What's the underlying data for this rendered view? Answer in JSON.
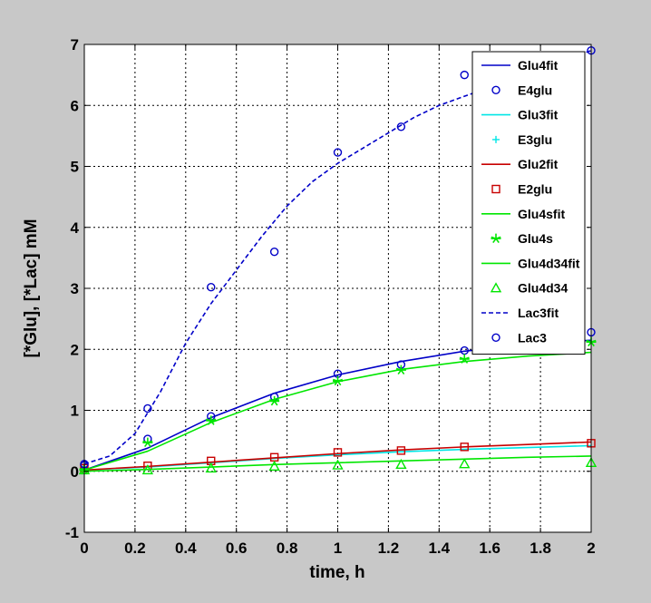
{
  "colors": {
    "figure_bg": "#c8c8c8",
    "axes_bg": "#ffffff",
    "blue": "#0000c8",
    "cyan": "#00e6e6",
    "red": "#c80000",
    "green": "#00e600"
  },
  "chart_data": {
    "type": "scatter",
    "xlabel": "time, h",
    "ylabel": "[*Glu], [*Lac] mM",
    "xlim": [
      0,
      2
    ],
    "ylim": [
      -1,
      7
    ],
    "xticks": [
      0,
      0.2,
      0.4,
      0.6,
      0.8,
      1,
      1.2,
      1.4,
      1.6,
      1.8,
      2
    ],
    "yticks": [
      -1,
      0,
      1,
      2,
      3,
      4,
      5,
      6,
      7
    ],
    "xtick_labels": [
      "0",
      "0.2",
      "0.4",
      "0.6",
      "0.8",
      "1",
      "1.2",
      "1.4",
      "1.6",
      "1.8",
      "2"
    ],
    "ytick_labels": [
      "-1",
      "0",
      "1",
      "2",
      "3",
      "4",
      "5",
      "6",
      "7"
    ],
    "grid": true,
    "legend_position": "top-right",
    "series": [
      {
        "name": "Glu4fit",
        "kind": "line",
        "color": "#0000c8",
        "dash": "solid",
        "x": [
          0,
          0.25,
          0.5,
          0.75,
          1,
          1.25,
          1.5,
          1.75,
          2
        ],
        "y": [
          0.02,
          0.38,
          0.88,
          1.28,
          1.58,
          1.8,
          1.97,
          2.08,
          2.15
        ]
      },
      {
        "name": "E4glu",
        "kind": "marker",
        "marker": "circle",
        "color": "#0000c8",
        "x": [
          0,
          0.25,
          0.5,
          0.75,
          1,
          1.25,
          1.5,
          2
        ],
        "y": [
          0.1,
          0.53,
          0.9,
          1.22,
          1.6,
          1.75,
          1.98,
          2.28
        ]
      },
      {
        "name": "Glu3fit",
        "kind": "line",
        "color": "#00e6e6",
        "dash": "solid",
        "x": [
          0,
          0.25,
          0.5,
          0.75,
          1,
          1.25,
          1.5,
          1.75,
          2
        ],
        "y": [
          0.02,
          0.07,
          0.14,
          0.21,
          0.27,
          0.32,
          0.36,
          0.39,
          0.42
        ]
      },
      {
        "name": "E3glu",
        "kind": "marker",
        "marker": "plus",
        "color": "#00e6e6",
        "x": [],
        "y": []
      },
      {
        "name": "Glu2fit",
        "kind": "line",
        "color": "#c80000",
        "dash": "solid",
        "x": [
          0,
          0.25,
          0.5,
          0.75,
          1,
          1.25,
          1.5,
          1.75,
          2
        ],
        "y": [
          0.02,
          0.08,
          0.15,
          0.22,
          0.29,
          0.35,
          0.4,
          0.44,
          0.48
        ]
      },
      {
        "name": "E2glu",
        "kind": "marker",
        "marker": "square",
        "color": "#c80000",
        "x": [
          0,
          0.25,
          0.5,
          0.75,
          1,
          1.25,
          1.5,
          2
        ],
        "y": [
          0.05,
          0.09,
          0.17,
          0.23,
          0.31,
          0.34,
          0.4,
          0.46
        ]
      },
      {
        "name": "Glu4sfit",
        "kind": "line",
        "color": "#00e600",
        "dash": "solid",
        "x": [
          0,
          0.25,
          0.5,
          0.75,
          1,
          1.25,
          1.5,
          1.75,
          2
        ],
        "y": [
          0.02,
          0.33,
          0.8,
          1.18,
          1.47,
          1.67,
          1.8,
          1.89,
          1.95
        ]
      },
      {
        "name": "Glu4s",
        "kind": "marker",
        "marker": "star",
        "color": "#00e600",
        "x": [
          0,
          0.25,
          0.5,
          0.75,
          1,
          1.25,
          1.5,
          2
        ],
        "y": [
          0.02,
          0.47,
          0.83,
          1.15,
          1.48,
          1.66,
          1.84,
          2.12
        ]
      },
      {
        "name": "Glu4d34fit",
        "kind": "line",
        "color": "#00e600",
        "dash": "solid",
        "x": [
          0,
          0.25,
          0.5,
          0.75,
          1,
          1.25,
          1.5,
          1.75,
          2
        ],
        "y": [
          0.0,
          0.03,
          0.07,
          0.11,
          0.14,
          0.17,
          0.2,
          0.23,
          0.25
        ]
      },
      {
        "name": "Glu4d34",
        "kind": "marker",
        "marker": "triangle",
        "color": "#00e600",
        "x": [
          0,
          0.25,
          0.5,
          0.75,
          1,
          1.25,
          1.5,
          2
        ],
        "y": [
          0.02,
          0.02,
          0.05,
          0.08,
          0.1,
          0.11,
          0.12,
          0.14
        ]
      },
      {
        "name": "Lac3fit",
        "kind": "line",
        "color": "#0000c8",
        "dash": "dashed",
        "x": [
          0,
          0.1,
          0.2,
          0.3,
          0.4,
          0.5,
          0.6,
          0.7,
          0.8,
          0.9,
          1,
          1.1,
          1.2,
          1.3,
          1.4,
          1.5,
          1.6,
          1.7,
          1.8,
          1.9,
          2
        ],
        "y": [
          0.12,
          0.25,
          0.62,
          1.3,
          2.1,
          2.75,
          3.3,
          3.85,
          4.35,
          4.75,
          5.05,
          5.3,
          5.55,
          5.8,
          6.0,
          6.15,
          6.3,
          6.45,
          6.6,
          6.75,
          6.9
        ]
      },
      {
        "name": "Lac3",
        "kind": "marker",
        "marker": "circle",
        "color": "#0000c8",
        "x": [
          0,
          0.25,
          0.5,
          0.75,
          1,
          1.25,
          1.5,
          2
        ],
        "y": [
          0.12,
          1.03,
          3.02,
          3.6,
          5.23,
          5.65,
          6.5,
          6.9
        ]
      }
    ]
  }
}
